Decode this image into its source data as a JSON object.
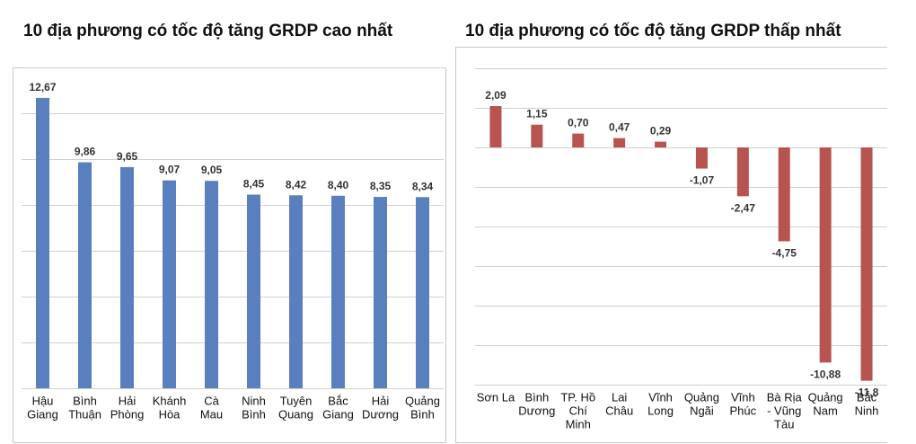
{
  "colors": {
    "left_bar": "#5a7fbe",
    "right_bar": "#b85450",
    "grid": "#d0d0d0",
    "border": "#c8c8c8"
  },
  "chart_data": [
    {
      "type": "bar",
      "title": "10 địa phương có tốc độ tăng GRDP cao nhất",
      "categories": [
        [
          "Hậu",
          "Giang"
        ],
        [
          "Bình",
          "Thuận"
        ],
        [
          "Hải",
          "Phòng"
        ],
        [
          "Khánh",
          "Hòa"
        ],
        [
          "Cà",
          "Mau"
        ],
        [
          "Ninh",
          "Bình"
        ],
        [
          "Tuyên",
          "Quang"
        ],
        [
          "Bắc",
          "Giang"
        ],
        [
          "Hải",
          "Dương"
        ],
        [
          "Quảng",
          "Bình"
        ]
      ],
      "values": [
        12.67,
        9.86,
        9.65,
        9.07,
        9.05,
        8.45,
        8.42,
        8.4,
        8.35,
        8.34
      ],
      "labels": [
        "12,67",
        "9,86",
        "9,65",
        "9,07",
        "9,05",
        "8,45",
        "8,42",
        "8,40",
        "8,35",
        "8,34"
      ],
      "ylim": [
        0,
        14
      ],
      "grid": true
    },
    {
      "type": "bar",
      "title": "10 địa phương có tốc độ tăng GRDP thấp nhất",
      "categories": [
        [
          "Sơn La"
        ],
        [
          "Bình",
          "Dương"
        ],
        [
          "TP. Hồ",
          "Chí",
          "Minh"
        ],
        [
          "Lai",
          "Châu"
        ],
        [
          "Vĩnh",
          "Long"
        ],
        [
          "Quảng",
          "Ngãi"
        ],
        [
          "Vĩnh",
          "Phúc"
        ],
        [
          "Bà Rịa",
          "- Vũng",
          "Tàu"
        ],
        [
          "Quảng",
          "Nam"
        ],
        [
          "Bắc",
          "Ninh"
        ]
      ],
      "values": [
        2.09,
        1.15,
        0.7,
        0.47,
        0.29,
        -1.07,
        -2.47,
        -4.75,
        -10.88,
        -11.8
      ],
      "labels": [
        "2,09",
        "1,15",
        "0,70",
        "0,47",
        "0,29",
        "-1,07",
        "-2,47",
        "-4,75",
        "-10,88",
        "-11,8"
      ],
      "ylim": [
        -12,
        4
      ],
      "grid": true
    }
  ]
}
